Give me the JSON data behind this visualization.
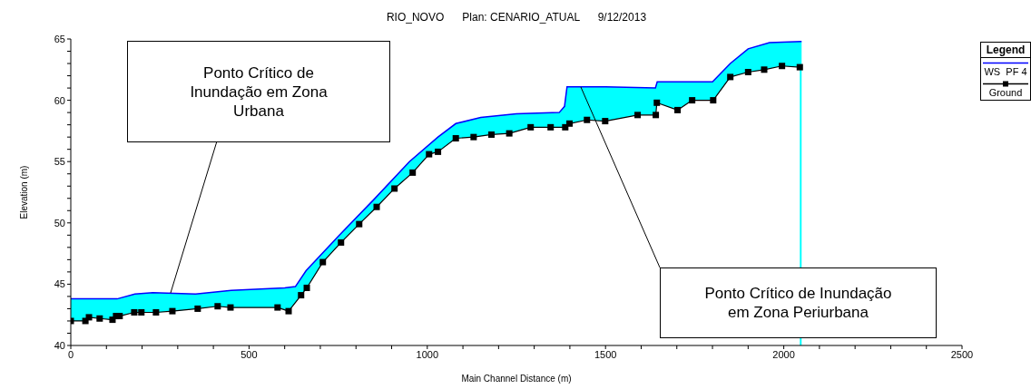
{
  "chart_data": {
    "type": "line",
    "title": "RIO_NOVO      Plan: CENARIO_ATUAL      9/12/2013",
    "xlabel": "Main Channel Distance (m)",
    "ylabel": "Elevation (m)",
    "legend_title": "Legend",
    "legend": "top right",
    "xlim": [
      0,
      2500
    ],
    "xticks": [
      0,
      {
        "value": 100,
        "label": null
      },
      {
        "value": 200,
        "label": null
      },
      {
        "value": 300,
        "label": null
      },
      {
        "value": 400,
        "label": null
      },
      500,
      {
        "value": 600,
        "label": null
      },
      {
        "value": 700,
        "label": null
      },
      {
        "value": 800,
        "label": null
      },
      {
        "value": 900,
        "label": null
      },
      1000,
      {
        "value": 1100,
        "label": null
      },
      {
        "value": 1200,
        "label": null
      },
      {
        "value": 1300,
        "label": null
      },
      {
        "value": 1400,
        "label": null
      },
      1500,
      {
        "value": 1600,
        "label": null
      },
      {
        "value": 1700,
        "label": null
      },
      {
        "value": 1800,
        "label": null
      },
      {
        "value": 1900,
        "label": null
      },
      2000,
      {
        "value": 2100,
        "label": null
      },
      {
        "value": 2200,
        "label": null
      },
      {
        "value": 2300,
        "label": null
      },
      {
        "value": 2400,
        "label": null
      },
      2500
    ],
    "ylim": [
      40,
      65
    ],
    "yticks": [
      40,
      {
        "value": 41,
        "label": null
      },
      {
        "value": 42,
        "label": null
      },
      {
        "value": 43,
        "label": null
      },
      {
        "value": 44,
        "label": null
      },
      45,
      {
        "value": 46,
        "label": null
      },
      {
        "value": 47,
        "label": null
      },
      {
        "value": 48,
        "label": null
      },
      {
        "value": 49,
        "label": null
      },
      50,
      {
        "value": 51,
        "label": null
      },
      {
        "value": 52,
        "label": null
      },
      {
        "value": 53,
        "label": null
      },
      {
        "value": 54,
        "label": null
      },
      55,
      {
        "value": 56,
        "label": null
      },
      {
        "value": 57,
        "label": null
      },
      {
        "value": 58,
        "label": null
      },
      {
        "value": 59,
        "label": null
      },
      60,
      {
        "value": 61,
        "label": null
      },
      {
        "value": 62,
        "label": null
      },
      {
        "value": 63,
        "label": null
      },
      {
        "value": 64,
        "label": null
      },
      65
    ],
    "grid": false,
    "series": [
      {
        "name": "WS  PF 4",
        "type": "area",
        "color": "#0000ff",
        "marker": "none",
        "x": [
          0,
          130,
          180,
          230,
          350,
          450,
          600,
          630,
          660,
          750,
          850,
          950,
          1030,
          1080,
          1150,
          1250,
          1370,
          1385,
          1392,
          1500,
          1640,
          1645,
          1800,
          1850,
          1900,
          1960,
          2050
        ],
        "values": [
          43.8,
          43.8,
          44.2,
          44.3,
          44.2,
          44.5,
          44.7,
          44.8,
          46.1,
          48.9,
          51.9,
          55.0,
          57.0,
          58.1,
          58.6,
          58.9,
          59.0,
          59.5,
          61.1,
          61.1,
          61.0,
          61.5,
          61.5,
          63.0,
          64.2,
          64.7,
          64.8
        ]
      },
      {
        "name": "Ground",
        "type": "line",
        "color": "#000000",
        "marker": "square",
        "x": [
          0,
          41,
          51,
          81,
          117,
          127,
          137,
          178,
          198,
          239,
          285,
          356,
          412,
          448,
          580,
          611,
          646,
          662,
          707,
          758,
          809,
          858,
          908,
          959,
          1005,
          1030,
          1080,
          1130,
          1180,
          1230,
          1290,
          1346,
          1387,
          1399,
          1448,
          1499,
          1590,
          1641,
          1644,
          1702,
          1743,
          1802,
          1850,
          1900,
          1945,
          1995,
          2045
        ],
        "values": [
          42.0,
          42.0,
          42.3,
          42.2,
          42.1,
          42.4,
          42.4,
          42.7,
          42.7,
          42.7,
          42.8,
          43.0,
          43.2,
          43.1,
          43.1,
          42.8,
          44.1,
          44.7,
          46.8,
          48.4,
          49.9,
          51.3,
          52.8,
          54.1,
          55.6,
          55.8,
          56.9,
          57.0,
          57.2,
          57.3,
          57.8,
          57.8,
          57.8,
          58.1,
          58.4,
          58.3,
          58.8,
          58.8,
          59.8,
          59.2,
          60.0,
          60.0,
          61.9,
          62.3,
          62.5,
          62.8,
          62.7
        ]
      }
    ],
    "annotations": [
      "Ponto Crítico de Inundação em Zona Urbana",
      "Ponto Crítico de Inundação em Zona Periurbana"
    ]
  }
}
